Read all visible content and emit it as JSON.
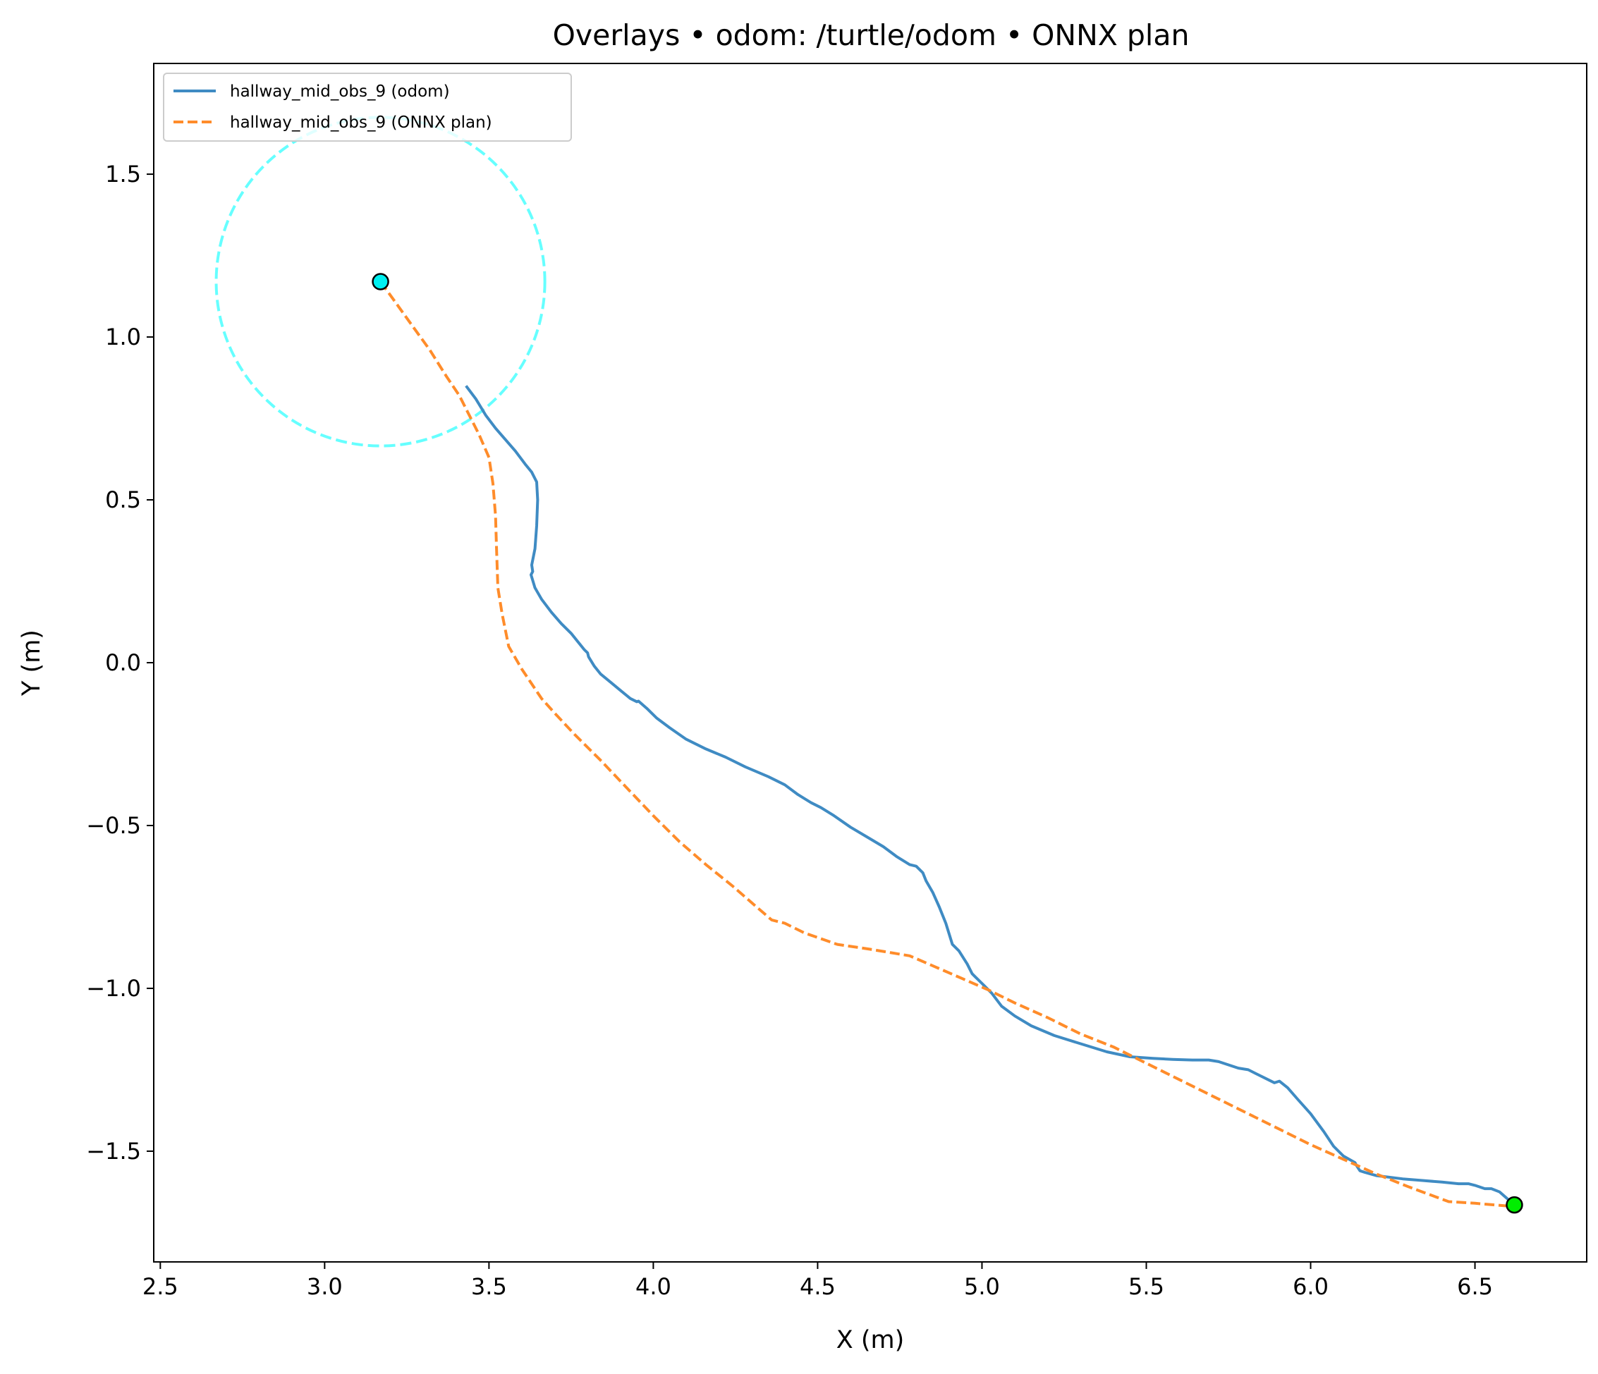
{
  "chart_data": {
    "type": "line",
    "title": "Overlays • odom: /turtle/odom • ONNX plan",
    "xlabel": "X (m)",
    "ylabel": "Y (m)",
    "xlim": [
      2.48,
      6.84
    ],
    "ylim": [
      -1.84,
      1.84
    ],
    "xticks": [
      2.5,
      3.0,
      3.5,
      4.0,
      4.5,
      5.0,
      5.5,
      6.0,
      6.5
    ],
    "xtick_labels": [
      "2.5",
      "3.0",
      "3.5",
      "4.0",
      "4.5",
      "5.0",
      "5.5",
      "6.0",
      "6.5"
    ],
    "yticks": [
      1.5,
      1.0,
      0.5,
      0.0,
      -0.5,
      -1.0,
      -1.5
    ],
    "ytick_labels": [
      "1.5",
      "1.0",
      "0.5",
      "0.0",
      "−0.5",
      "−1.0",
      "−1.5"
    ],
    "grid": false,
    "legend_position": "top-left",
    "series": [
      {
        "name": "hallway_mid_obs_9 (odom)",
        "color": "#3f8bc3",
        "style": "solid",
        "x": [
          3.43,
          3.46,
          3.49,
          3.52,
          3.55,
          3.58,
          3.61,
          3.63,
          3.645,
          3.648,
          3.645,
          3.64,
          3.63,
          3.633,
          3.628,
          3.64,
          3.66,
          3.69,
          3.72,
          3.75,
          3.77,
          3.79,
          3.8,
          3.803,
          3.82,
          3.84,
          3.87,
          3.9,
          3.93,
          3.95,
          3.955,
          3.98,
          4.01,
          4.05,
          4.1,
          4.16,
          4.22,
          4.28,
          4.35,
          4.4,
          4.44,
          4.48,
          4.51,
          4.55,
          4.6,
          4.65,
          4.7,
          4.74,
          4.78,
          4.8,
          4.82,
          4.83,
          4.85,
          4.87,
          4.89,
          4.91,
          4.93,
          4.955,
          4.97,
          4.98,
          5.0,
          5.03,
          5.06,
          5.1,
          5.15,
          5.22,
          5.3,
          5.38,
          5.45,
          5.52,
          5.58,
          5.64,
          5.69,
          5.72,
          5.75,
          5.78,
          5.81,
          5.84,
          5.87,
          5.89,
          5.905,
          5.93,
          5.96,
          6.0,
          6.04,
          6.07,
          6.1,
          6.135,
          6.14,
          6.15,
          6.165,
          6.2,
          6.28,
          6.34,
          6.4,
          6.45,
          6.48,
          6.5,
          6.53,
          6.55,
          6.575,
          6.62
        ],
        "y": [
          0.85,
          0.81,
          0.76,
          0.72,
          0.685,
          0.65,
          0.61,
          0.585,
          0.555,
          0.5,
          0.42,
          0.35,
          0.3,
          0.28,
          0.27,
          0.23,
          0.195,
          0.155,
          0.12,
          0.09,
          0.065,
          0.04,
          0.03,
          0.018,
          -0.01,
          -0.035,
          -0.06,
          -0.085,
          -0.11,
          -0.12,
          -0.118,
          -0.14,
          -0.17,
          -0.2,
          -0.235,
          -0.265,
          -0.29,
          -0.32,
          -0.35,
          -0.375,
          -0.405,
          -0.43,
          -0.445,
          -0.47,
          -0.505,
          -0.535,
          -0.565,
          -0.595,
          -0.62,
          -0.625,
          -0.645,
          -0.67,
          -0.705,
          -0.75,
          -0.8,
          -0.865,
          -0.885,
          -0.925,
          -0.955,
          -0.965,
          -0.985,
          -1.015,
          -1.055,
          -1.085,
          -1.115,
          -1.145,
          -1.17,
          -1.195,
          -1.21,
          -1.215,
          -1.218,
          -1.22,
          -1.22,
          -1.225,
          -1.235,
          -1.245,
          -1.25,
          -1.265,
          -1.28,
          -1.29,
          -1.285,
          -1.305,
          -1.34,
          -1.385,
          -1.44,
          -1.485,
          -1.515,
          -1.535,
          -1.545,
          -1.56,
          -1.565,
          -1.575,
          -1.585,
          -1.59,
          -1.595,
          -1.6,
          -1.6,
          -1.605,
          -1.615,
          -1.615,
          -1.625,
          -1.665
        ]
      },
      {
        "name": "hallway_mid_obs_9 (ONNX plan)",
        "color": "#ff8c2a",
        "style": "dashed",
        "x": [
          3.17,
          3.22,
          3.27,
          3.32,
          3.37,
          3.41,
          3.44,
          3.47,
          3.5,
          3.512,
          3.52,
          3.523,
          3.527,
          3.54,
          3.56,
          3.6,
          3.66,
          3.7,
          3.76,
          3.84,
          3.92,
          4.0,
          4.08,
          4.16,
          4.24,
          4.32,
          4.36,
          4.4,
          4.46,
          4.56,
          4.66,
          4.78,
          4.86,
          4.94,
          5.02,
          5.1,
          5.2,
          5.3,
          5.4,
          5.5,
          5.6,
          5.7,
          5.8,
          5.9,
          6.0,
          6.1,
          6.2,
          6.3,
          6.38,
          6.42,
          6.5,
          6.56,
          6.62
        ],
        "y": [
          1.17,
          1.1,
          1.03,
          0.96,
          0.88,
          0.82,
          0.76,
          0.7,
          0.63,
          0.55,
          0.45,
          0.35,
          0.23,
          0.15,
          0.05,
          -0.02,
          -0.11,
          -0.155,
          -0.22,
          -0.3,
          -0.385,
          -0.47,
          -0.55,
          -0.62,
          -0.685,
          -0.755,
          -0.79,
          -0.8,
          -0.83,
          -0.865,
          -0.88,
          -0.9,
          -0.935,
          -0.97,
          -1.005,
          -1.045,
          -1.09,
          -1.14,
          -1.18,
          -1.23,
          -1.28,
          -1.33,
          -1.38,
          -1.43,
          -1.48,
          -1.525,
          -1.57,
          -1.61,
          -1.64,
          -1.655,
          -1.66,
          -1.665,
          -1.67
        ]
      }
    ],
    "markers": [
      {
        "name": "start",
        "x": 3.17,
        "y": 1.17,
        "color": "#00f0f0"
      },
      {
        "name": "goal",
        "x": 6.62,
        "y": -1.665,
        "color": "#00ee00"
      }
    ],
    "circles": [
      {
        "name": "goal-radius",
        "cx": 3.17,
        "cy": 1.17,
        "r": 0.5,
        "color": "#66ffff",
        "style": "dashed"
      }
    ]
  }
}
